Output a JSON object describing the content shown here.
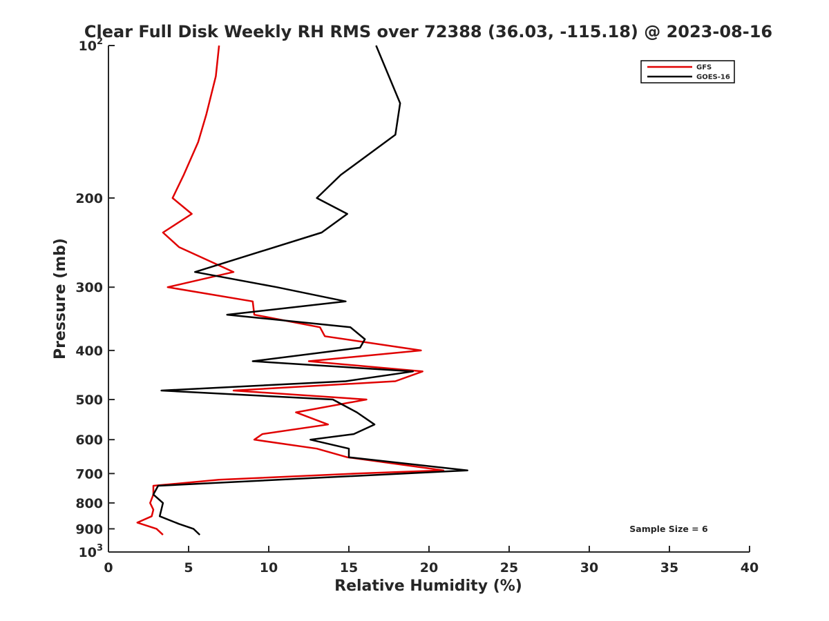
{
  "chart_data": {
    "type": "line",
    "title": "Clear Full Disk Weekly RH RMS over 72388 (36.03, -115.18) @ 2023-08-16",
    "xlabel": "Relative Humidity (%)",
    "ylabel": "Pressure (mb)",
    "xlim": [
      0,
      40
    ],
    "ylim": [
      100,
      1000
    ],
    "yscale": "log",
    "y_reversed": true,
    "grid": false,
    "legend_position": "top-right",
    "x_ticks": [
      "0",
      "5",
      "10",
      "15",
      "20",
      "25",
      "30",
      "35",
      "40"
    ],
    "y_ticks": [
      {
        "value": 100,
        "base": "10",
        "exp": "2"
      },
      {
        "value": 200,
        "label": "200"
      },
      {
        "value": 300,
        "label": "300"
      },
      {
        "value": 400,
        "label": "400"
      },
      {
        "value": 500,
        "label": "500"
      },
      {
        "value": 600,
        "label": "600"
      },
      {
        "value": 700,
        "label": "700"
      },
      {
        "value": 800,
        "label": "800"
      },
      {
        "value": 900,
        "label": "900"
      },
      {
        "value": 1000,
        "base": "10",
        "exp": "3"
      }
    ],
    "annotation": "Sample Size = 6",
    "series": [
      {
        "name": "GFS",
        "color": "#e00000",
        "points": [
          [
            6.9,
            100
          ],
          [
            6.7,
            115
          ],
          [
            6.1,
            137
          ],
          [
            5.6,
            155
          ],
          [
            4.7,
            180
          ],
          [
            4.0,
            200
          ],
          [
            5.2,
            215
          ],
          [
            3.4,
            234
          ],
          [
            4.4,
            250
          ],
          [
            7.8,
            280
          ],
          [
            3.7,
            300
          ],
          [
            9.0,
            320
          ],
          [
            9.1,
            340
          ],
          [
            13.2,
            360
          ],
          [
            13.5,
            375
          ],
          [
            19.5,
            400
          ],
          [
            12.5,
            420
          ],
          [
            19.6,
            440
          ],
          [
            17.9,
            460
          ],
          [
            7.8,
            480
          ],
          [
            16.1,
            500
          ],
          [
            11.7,
            530
          ],
          [
            13.7,
            560
          ],
          [
            9.6,
            585
          ],
          [
            9.1,
            600
          ],
          [
            13.0,
            625
          ],
          [
            14.9,
            650
          ],
          [
            20.9,
            690
          ],
          [
            15.5,
            700
          ],
          [
            6.9,
            720
          ],
          [
            2.8,
            740
          ],
          [
            2.8,
            770
          ],
          [
            2.6,
            800
          ],
          [
            2.8,
            825
          ],
          [
            2.7,
            850
          ],
          [
            1.8,
            875
          ],
          [
            3.0,
            900
          ],
          [
            3.4,
            925
          ]
        ]
      },
      {
        "name": "GOES-16",
        "color": "#000000",
        "points": [
          [
            16.7,
            100
          ],
          [
            18.2,
            130
          ],
          [
            17.9,
            150
          ],
          [
            14.5,
            180
          ],
          [
            13.0,
            200
          ],
          [
            14.9,
            215
          ],
          [
            13.3,
            234
          ],
          [
            5.4,
            280
          ],
          [
            10.5,
            300
          ],
          [
            14.8,
            320
          ],
          [
            7.4,
            340
          ],
          [
            15.1,
            360
          ],
          [
            16.0,
            380
          ],
          [
            15.7,
            395
          ],
          [
            9.0,
            420
          ],
          [
            19.0,
            440
          ],
          [
            14.8,
            460
          ],
          [
            3.3,
            480
          ],
          [
            14.0,
            500
          ],
          [
            15.5,
            530
          ],
          [
            16.6,
            560
          ],
          [
            15.3,
            585
          ],
          [
            12.6,
            600
          ],
          [
            15.0,
            625
          ],
          [
            15.0,
            650
          ],
          [
            22.4,
            690
          ],
          [
            3.1,
            740
          ],
          [
            2.8,
            770
          ],
          [
            3.4,
            800
          ],
          [
            3.2,
            850
          ],
          [
            4.4,
            880
          ],
          [
            5.3,
            900
          ],
          [
            5.7,
            925
          ]
        ]
      }
    ]
  }
}
